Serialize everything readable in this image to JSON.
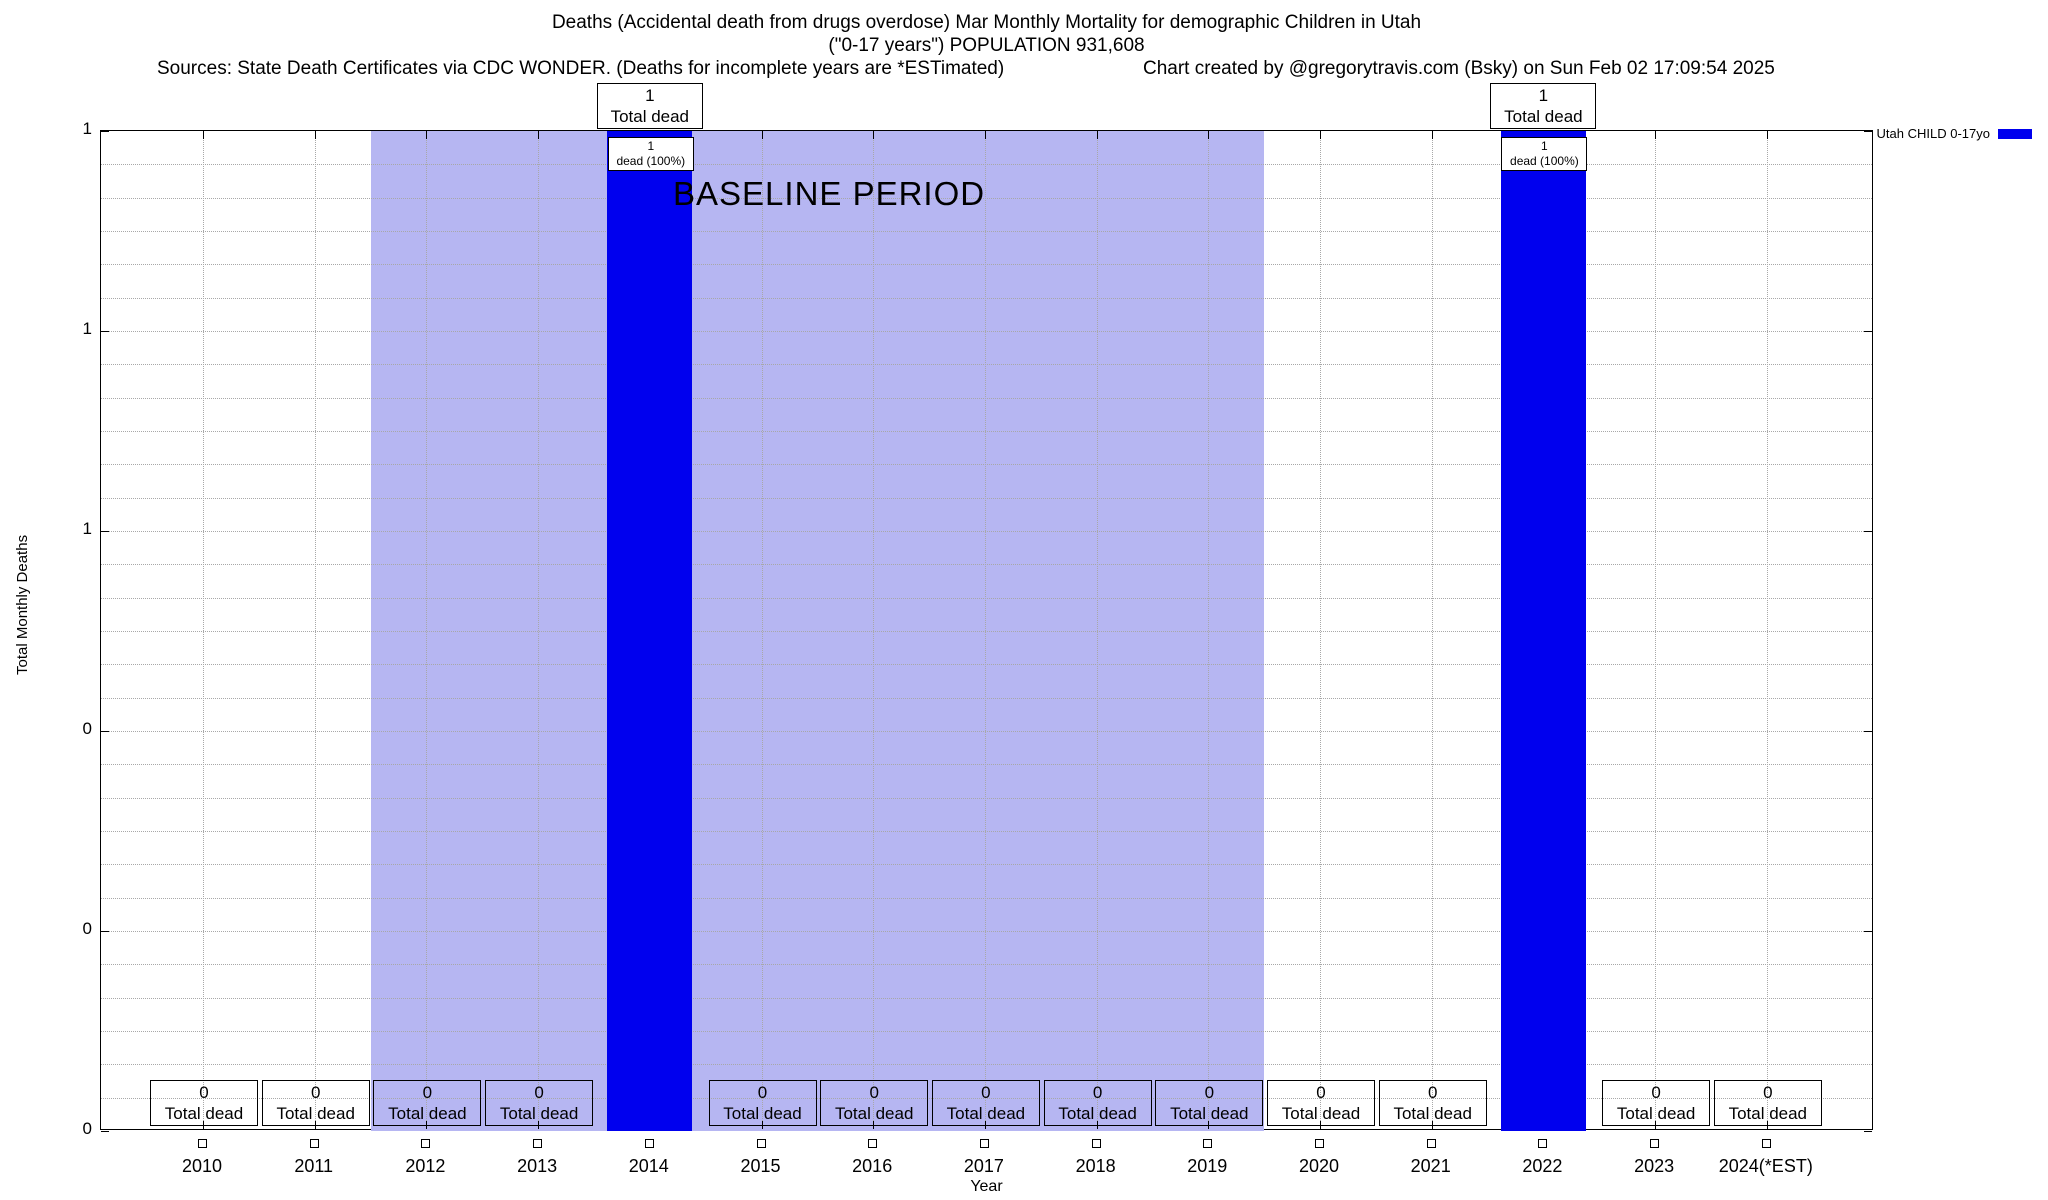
{
  "chart_data": {
    "type": "bar",
    "title": "Deaths (Accidental death from drugs overdose) Mar Monthly Mortality for demographic Children in Utah",
    "subtitle": "(\"0-17 years\") POPULATION 931,608",
    "footnote_left": "Sources: State Death Certificates via CDC WONDER. (Deaths for incomplete years are *ESTimated)",
    "footnote_right": "Chart created by @gregorytravis.com (Bsky) on Sun Feb 02 17:09:54 2025",
    "xlabel": "Year",
    "ylabel": "Total Monthly Deaths",
    "ylim": [
      0,
      1
    ],
    "y_ticks": [
      {
        "value": 1.0,
        "label": "1"
      },
      {
        "value": 0.8,
        "label": "1"
      },
      {
        "value": 0.6,
        "label": "1"
      },
      {
        "value": 0.4,
        "label": "0"
      },
      {
        "value": 0.2,
        "label": "0"
      },
      {
        "value": 0.0,
        "label": "0"
      }
    ],
    "grid": {
      "horizontal_divisions": 30,
      "vertical_per_category": true
    },
    "legend": {
      "label": "Utah CHILD 0-17yo",
      "position": "top-right",
      "color": "#0000ee"
    },
    "categories": [
      "2010",
      "2011",
      "2012",
      "2013",
      "2014",
      "2015",
      "2016",
      "2017",
      "2018",
      "2019",
      "2020",
      "2021",
      "2022",
      "2023",
      "2024(*EST)"
    ],
    "values": [
      0,
      0,
      0,
      0,
      1,
      0,
      0,
      0,
      0,
      0,
      0,
      0,
      1,
      0,
      0
    ],
    "series_name": "Utah CHILD 0-17yo",
    "bar_color": "#0000ee",
    "baseline_region": {
      "label": "BASELINE PERIOD",
      "from": "2012",
      "to": "2019",
      "color": "#b6b6f2"
    },
    "bar_annotations": {
      "above_plot_line2": "Total dead",
      "inside_bar_line2": "dead (100%)"
    },
    "zero_annotations": {
      "line2": "Total dead"
    },
    "point_markers": "open-square at zero line for every year"
  }
}
